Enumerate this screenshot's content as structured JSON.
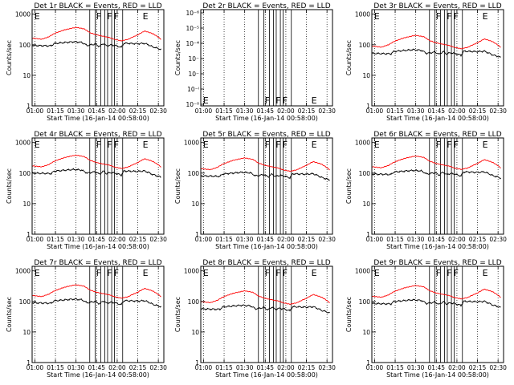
{
  "chart_data": {
    "type": "line",
    "x_ticks": [
      "01:00",
      "01:15",
      "01:30",
      "01:45",
      "02:00",
      "02:15",
      "02:30"
    ],
    "xlabel": "Start Time (16-Jan-14 00:58:00)",
    "ylabel": "Counts/sec",
    "ylog": true,
    "y_ticks": [
      "1",
      "10",
      "100",
      "1000"
    ],
    "y_ticks_det2": [
      "10⁻⁰",
      "10⁻ⁱ",
      "10⁻⁲",
      "10⁻⁳",
      "10⁻⁴",
      "10⁻⁵",
      "10⁻⁶"
    ],
    "x_range": [
      "00:58",
      "02:34"
    ],
    "gridlines": "dotted vertical at tick marks",
    "flags": [
      {
        "label": "E",
        "time": "00:59"
      },
      {
        "label": "F",
        "time": "01:44"
      },
      {
        "label": "F",
        "time": "01:52"
      },
      {
        "label": "F",
        "time": "01:57"
      },
      {
        "label": "E",
        "time": "02:18"
      }
    ],
    "flag_lines": [
      "01:40",
      "01:44",
      "01:48",
      "01:51",
      "01:53",
      "01:56",
      "01:58",
      "02:04"
    ],
    "black_trace": {
      "times": [
        "00:58",
        "01:12",
        "01:14",
        "01:28",
        "01:34",
        "01:38",
        "01:44",
        "01:47",
        "01:50",
        "01:52",
        "01:55",
        "01:58",
        "02:03",
        "02:05",
        "02:15",
        "02:20",
        "02:26",
        "02:32"
      ],
      "values": [
        95,
        92,
        110,
        125,
        120,
        95,
        105,
        88,
        110,
        92,
        98,
        96,
        82,
        112,
        108,
        112,
        85,
        70
      ]
    },
    "red_trace": {
      "times": [
        "00:58",
        "01:05",
        "01:10",
        "01:14",
        "01:22",
        "01:30",
        "01:36",
        "01:40",
        "01:45",
        "01:52",
        "01:55",
        "01:58",
        "02:03",
        "02:08",
        "02:15",
        "02:20",
        "02:26",
        "02:32"
      ],
      "values": [
        165,
        152,
        180,
        230,
        310,
        370,
        330,
        250,
        210,
        180,
        170,
        150,
        135,
        150,
        210,
        280,
        230,
        150
      ]
    },
    "panels": [
      {
        "title": "Det 1r  BLACK = Events, RED = LLD",
        "scale": 1.0
      },
      {
        "title": "Det 2r  BLACK = Events, RED = LLD",
        "scale": 0,
        "empty": true
      },
      {
        "title": "Det 3r  BLACK = Events, RED = LLD",
        "scale": 0.55
      },
      {
        "title": "Det 4r  BLACK = Events, RED = LLD",
        "scale": 1.05
      },
      {
        "title": "Det 5r  BLACK = Events, RED = LLD",
        "scale": 0.85
      },
      {
        "title": "Det 6r  BLACK = Events, RED = LLD",
        "scale": 0.98
      },
      {
        "title": "Det 7r  BLACK = Events, RED = LLD",
        "scale": 0.95
      },
      {
        "title": "Det 8r  BLACK = Events, RED = LLD",
        "scale": 0.6
      },
      {
        "title": "Det 9r  BLACK = Events, RED = LLD",
        "scale": 0.9
      }
    ],
    "colors": {
      "events": "#000000",
      "lld": "#ff0000"
    }
  }
}
